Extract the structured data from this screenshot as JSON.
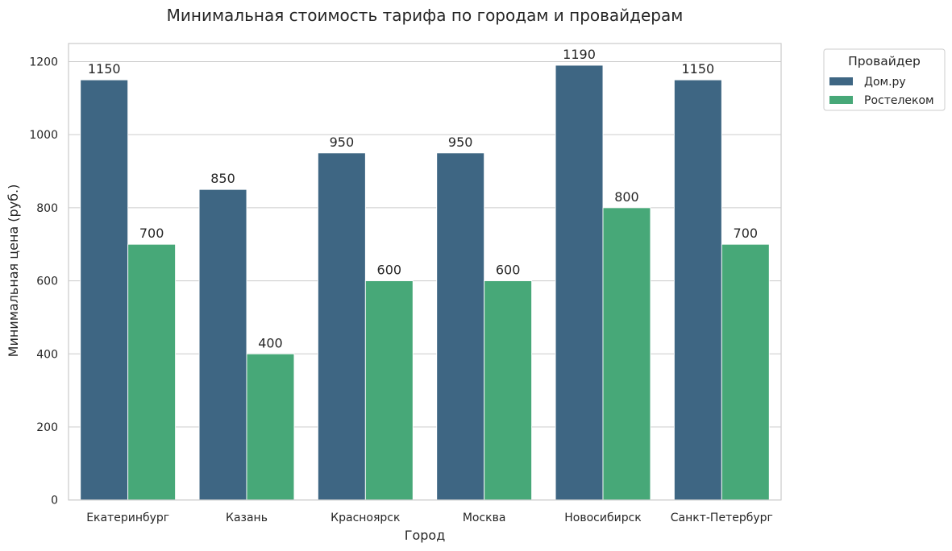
{
  "chart_data": {
    "type": "bar",
    "title": "Минимальная стоимость тарифа по городам и провайдерам",
    "xlabel": "Город",
    "ylabel": "Минимальная цена (руб.)",
    "categories": [
      "Екатеринбург",
      "Казань",
      "Красноярск",
      "Москва",
      "Новосибирск",
      "Санкт-Петербург"
    ],
    "series": [
      {
        "name": "Дом.ру",
        "color": "#3e6683",
        "values": [
          1150,
          850,
          950,
          950,
          1190,
          1150
        ]
      },
      {
        "name": "Ростелеком",
        "color": "#47a878",
        "values": [
          700,
          400,
          600,
          600,
          800,
          700
        ]
      }
    ],
    "ylim": [
      0,
      1249.5
    ],
    "yticks": [
      0,
      200,
      400,
      600,
      800,
      1000,
      1200
    ],
    "grid": true,
    "data_labels": true,
    "legend": {
      "title": "Провайдер",
      "position": "outside upper right"
    }
  },
  "style": {
    "grid_color": "#cccccc",
    "text_color": "#262626",
    "background": "#ffffff"
  }
}
